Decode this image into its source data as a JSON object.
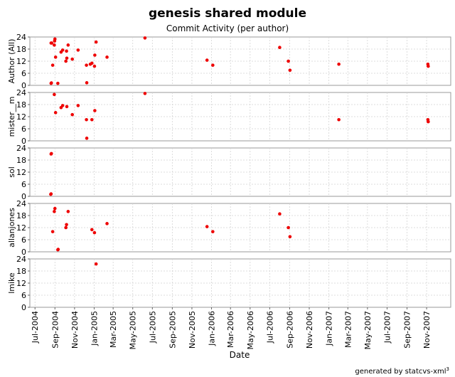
{
  "chart_data": {
    "type": "scatter",
    "title": "genesis shared module",
    "subtitle": "Commit Activity (per author)",
    "xlabel": "Date",
    "footer": "generated by statcvs-xml",
    "footer_sup": "3",
    "x_ticks": [
      "Jul-2004",
      "Sep-2004",
      "Nov-2004",
      "Jan-2005",
      "Mar-2005",
      "May-2005",
      "Jul-2005",
      "Sep-2005",
      "Nov-2005",
      "Jan-2006",
      "Mar-2006",
      "May-2006",
      "Jul-2006",
      "Sep-2006",
      "Nov-2006",
      "Jan-2007",
      "Mar-2007",
      "May-2007",
      "Jul-2007",
      "Sep-2007",
      "Nov-2007"
    ],
    "x_range": [
      "2004-06-15",
      "2008-01-15"
    ],
    "ylim": [
      0,
      24
    ],
    "y_ticks": [
      "0",
      "6",
      "12",
      "18",
      "24"
    ],
    "grid": true,
    "point_color": "#ee0000",
    "panels": [
      {
        "ylabel": "Author (All)",
        "points": [
          {
            "x": "2004-08-20",
            "y": 21
          },
          {
            "x": "2004-08-22",
            "y": 21
          },
          {
            "x": "2004-08-25",
            "y": 10
          },
          {
            "x": "2004-08-20",
            "y": 1
          },
          {
            "x": "2004-08-21",
            "y": 1.2
          },
          {
            "x": "2004-08-30",
            "y": 20
          },
          {
            "x": "2004-08-31",
            "y": 22
          },
          {
            "x": "2004-09-01",
            "y": 23
          },
          {
            "x": "2004-09-03",
            "y": 14
          },
          {
            "x": "2004-09-10",
            "y": 1
          },
          {
            "x": "2004-09-20",
            "y": 16.5
          },
          {
            "x": "2004-09-25",
            "y": 17.5
          },
          {
            "x": "2004-10-05",
            "y": 12
          },
          {
            "x": "2004-10-07",
            "y": 17
          },
          {
            "x": "2004-10-08",
            "y": 13.5
          },
          {
            "x": "2004-10-12",
            "y": 20
          },
          {
            "x": "2004-10-25",
            "y": 13
          },
          {
            "x": "2004-11-12",
            "y": 17.5
          },
          {
            "x": "2004-12-08",
            "y": 10
          },
          {
            "x": "2004-12-09",
            "y": 1.3
          },
          {
            "x": "2004-12-20",
            "y": 10.5
          },
          {
            "x": "2004-12-25",
            "y": 11
          },
          {
            "x": "2005-01-02",
            "y": 9.5
          },
          {
            "x": "2005-01-03",
            "y": 15
          },
          {
            "x": "2005-01-07",
            "y": 21.5
          },
          {
            "x": "2005-02-10",
            "y": 14
          },
          {
            "x": "2005-06-08",
            "y": 23.5
          },
          {
            "x": "2005-12-18",
            "y": 12.5
          },
          {
            "x": "2006-01-05",
            "y": 10
          },
          {
            "x": "2006-08-01",
            "y": 18.8
          },
          {
            "x": "2006-08-28",
            "y": 12
          },
          {
            "x": "2006-09-02",
            "y": 7.5
          },
          {
            "x": "2007-02-01",
            "y": 10.5
          },
          {
            "x": "2007-11-05",
            "y": 10.5
          },
          {
            "x": "2007-11-06",
            "y": 9.5
          }
        ]
      },
      {
        "ylabel": "mister__m",
        "points": [
          {
            "x": "2004-08-30",
            "y": 23
          },
          {
            "x": "2004-09-03",
            "y": 14
          },
          {
            "x": "2004-09-20",
            "y": 16.5
          },
          {
            "x": "2004-09-25",
            "y": 17.5
          },
          {
            "x": "2004-10-08",
            "y": 17
          },
          {
            "x": "2004-10-25",
            "y": 13
          },
          {
            "x": "2004-11-12",
            "y": 17.5
          },
          {
            "x": "2004-12-08",
            "y": 10.5
          },
          {
            "x": "2004-12-09",
            "y": 1.3
          },
          {
            "x": "2004-12-25",
            "y": 10.5
          },
          {
            "x": "2005-01-03",
            "y": 15
          },
          {
            "x": "2005-06-08",
            "y": 23.5
          },
          {
            "x": "2007-02-01",
            "y": 10.5
          },
          {
            "x": "2007-11-05",
            "y": 10.5
          },
          {
            "x": "2007-11-06",
            "y": 9.5
          }
        ]
      },
      {
        "ylabel": "sol",
        "points": [
          {
            "x": "2004-08-20",
            "y": 21
          },
          {
            "x": "2004-08-21",
            "y": 21.2
          },
          {
            "x": "2004-08-19",
            "y": 1
          },
          {
            "x": "2004-08-20",
            "y": 1.2
          }
        ]
      },
      {
        "ylabel": "allanjones",
        "points": [
          {
            "x": "2004-08-25",
            "y": 10
          },
          {
            "x": "2004-08-30",
            "y": 20
          },
          {
            "x": "2004-09-01",
            "y": 21.5
          },
          {
            "x": "2004-09-10",
            "y": 1
          },
          {
            "x": "2004-09-11",
            "y": 1.2
          },
          {
            "x": "2004-10-05",
            "y": 12
          },
          {
            "x": "2004-10-07",
            "y": 13.5
          },
          {
            "x": "2004-10-12",
            "y": 20
          },
          {
            "x": "2004-12-25",
            "y": 11
          },
          {
            "x": "2005-01-02",
            "y": 9.5
          },
          {
            "x": "2005-02-10",
            "y": 14
          },
          {
            "x": "2005-12-18",
            "y": 12.5
          },
          {
            "x": "2006-01-05",
            "y": 10
          },
          {
            "x": "2006-08-01",
            "y": 18.8
          },
          {
            "x": "2006-08-28",
            "y": 12
          },
          {
            "x": "2006-09-02",
            "y": 7.5
          }
        ]
      },
      {
        "ylabel": "lmike",
        "points": [
          {
            "x": "2005-01-07",
            "y": 21.5
          }
        ]
      }
    ]
  }
}
